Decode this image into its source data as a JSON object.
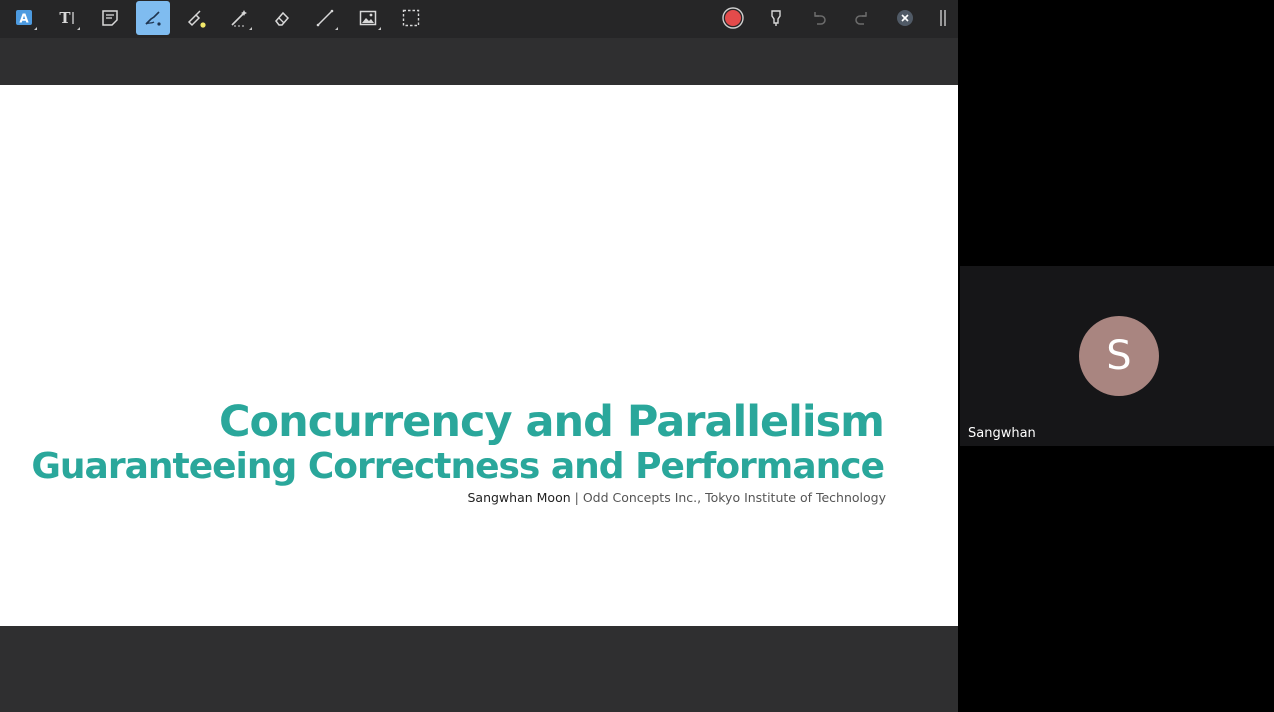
{
  "toolbar": {
    "tools": [
      {
        "icon": "text-box-icon"
      },
      {
        "icon": "text-cursor-icon"
      },
      {
        "icon": "note-icon"
      },
      {
        "icon": "pen-icon",
        "active": true
      },
      {
        "icon": "highlighter-icon"
      },
      {
        "icon": "magic-wand-icon"
      },
      {
        "icon": "eraser-icon"
      },
      {
        "icon": "line-icon"
      },
      {
        "icon": "image-icon"
      },
      {
        "icon": "selection-icon"
      }
    ],
    "right_tools": [
      {
        "icon": "record-icon"
      },
      {
        "icon": "marker-icon"
      },
      {
        "icon": "undo-icon"
      },
      {
        "icon": "redo-icon"
      },
      {
        "icon": "close-icon"
      },
      {
        "icon": "panel-divider-icon"
      }
    ],
    "active_color": "#7fbcf0",
    "record_color": "#e34b4b"
  },
  "slide": {
    "title": "Concurrency and Parallelism",
    "subtitle": "Guaranteeing Correctness and Performance",
    "author": "Sangwhan Moon",
    "separator": "|",
    "affiliation": "Odd Concepts Inc., Tokyo Institute of Technology",
    "accent_color": "#2aa79b"
  },
  "participant": {
    "initial": "S",
    "name": "Sangwhan",
    "avatar_color": "#a98580"
  }
}
